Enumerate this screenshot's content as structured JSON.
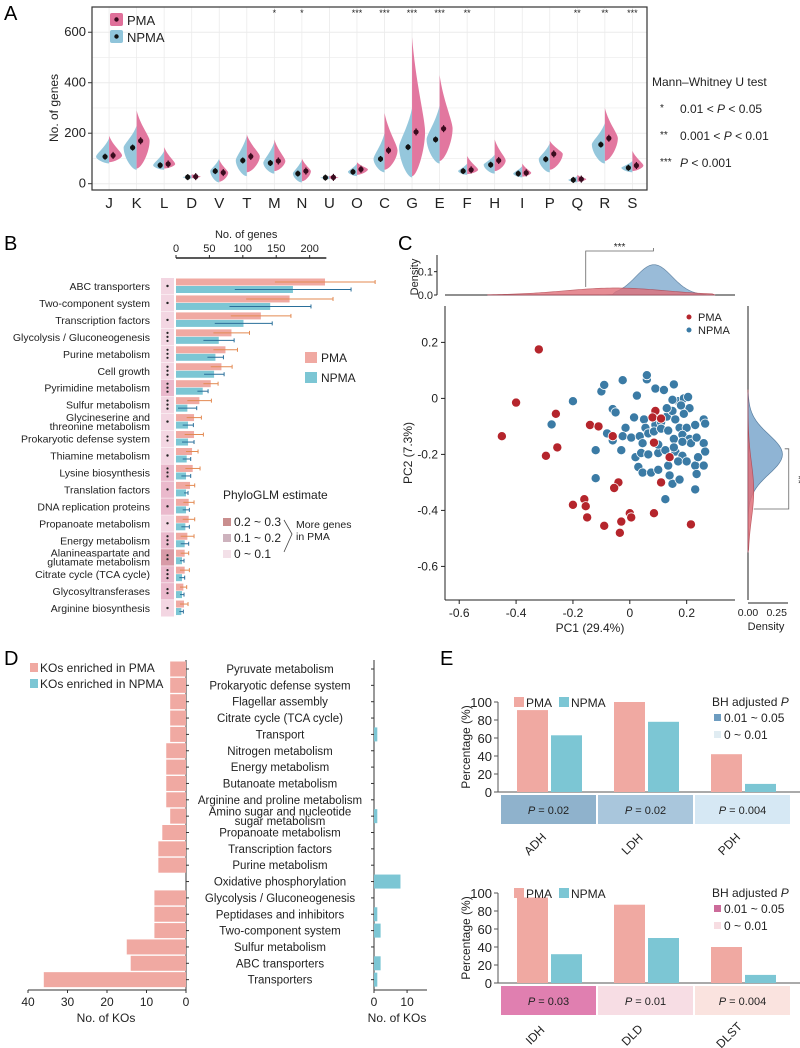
{
  "panel_labels": [
    "A",
    "B",
    "C",
    "D",
    "E"
  ],
  "colors": {
    "pma": "#e0709a",
    "npma": "#8fc4da",
    "pma_bar": "#f0a9a2",
    "npma_bar": "#7cc6d4",
    "pma_point": "#b5252c",
    "npma_point": "#3b7ba5",
    "pma_density": "#e0707a",
    "npma_density": "#8fb4d4"
  },
  "chart_data": [
    {
      "id": "A",
      "type": "violin",
      "ylabel": "No. of genes",
      "yticks": [
        0,
        200,
        400,
        600
      ],
      "ylim": [
        -25,
        700
      ],
      "legend": [
        "PMA",
        "NPMA"
      ],
      "categories": [
        "J",
        "K",
        "L",
        "D",
        "V",
        "T",
        "M",
        "N",
        "U",
        "O",
        "C",
        "G",
        "E",
        "F",
        "H",
        "I",
        "P",
        "Q",
        "R",
        "S"
      ],
      "series": [
        {
          "name": "NPMA",
          "means": [
            107,
            143,
            73,
            26,
            50,
            92,
            82,
            40,
            24,
            47,
            98,
            145,
            175,
            50,
            75,
            40,
            97,
            15,
            155,
            63
          ],
          "min": [
            80,
            55,
            55,
            20,
            5,
            30,
            40,
            5,
            18,
            30,
            45,
            25,
            80,
            35,
            40,
            25,
            45,
            5,
            80,
            45
          ],
          "max": [
            180,
            230,
            130,
            35,
            100,
            190,
            165,
            95,
            30,
            80,
            200,
            300,
            310,
            80,
            115,
            70,
            160,
            30,
            240,
            90
          ]
        },
        {
          "name": "PMA",
          "means": [
            112,
            170,
            78,
            28,
            44,
            108,
            90,
            50,
            25,
            57,
            132,
            205,
            218,
            55,
            92,
            43,
            118,
            18,
            180,
            72
          ],
          "min": [
            85,
            60,
            60,
            22,
            8,
            45,
            50,
            10,
            20,
            35,
            55,
            30,
            90,
            38,
            50,
            28,
            55,
            8,
            90,
            50
          ],
          "max": [
            190,
            290,
            145,
            38,
            95,
            195,
            175,
            100,
            32,
            85,
            280,
            580,
            430,
            110,
            175,
            80,
            170,
            35,
            300,
            130
          ]
        }
      ],
      "significance": [
        "",
        "",
        "",
        "",
        "",
        "",
        "*",
        "*",
        "",
        "***",
        "***",
        "***",
        "***",
        "**",
        "",
        "",
        "",
        "**",
        "**",
        "***"
      ],
      "annotation": {
        "title": "Mann–Whitney U test",
        "rows": [
          {
            "stars": "*",
            "pre": "0.01 < ",
            "p": "P",
            "post": " < 0.05"
          },
          {
            "stars": "**",
            "pre": "0.001 < ",
            "p": "P",
            "post": " < 0.01"
          },
          {
            "stars": "***",
            "pre": "",
            "p": "P",
            "post": "  < 0.001"
          }
        ]
      }
    },
    {
      "id": "B",
      "type": "bar",
      "orientation": "horizontal",
      "xlabel": "No. of genes",
      "xticks": [
        0,
        50,
        100,
        150,
        200
      ],
      "xlim": [
        0,
        230
      ],
      "legend": [
        "PMA",
        "NPMA"
      ],
      "categories": [
        "ABC transporters",
        "Two-component system",
        "Transcription factors",
        "Glycolysis / Gluconeogenesis",
        "Purine metabolism",
        "Cell growth",
        "Pyrimidine metabolism",
        "Sulfur metabolism",
        "Glycineserine and\nthreonine metabolism",
        "Prokaryotic defense system",
        "Thiamine metabolism",
        "Lysine biosynthesis",
        "Translation factors",
        "DNA replication proteins",
        "Propanoate metabolism",
        "Energy metabolism",
        "Alanineaspartate and\nglutamate metabolism",
        "Citrate cycle (TCA cycle)",
        "Glycosyltransferases",
        "Arginine biosynthesis"
      ],
      "series": [
        {
          "name": "PMA",
          "values": [
            223,
            170,
            127,
            83,
            74,
            68,
            52,
            35,
            27,
            27,
            24,
            25,
            21,
            19,
            19,
            17,
            13,
            13,
            11,
            12
          ],
          "err": [
            75,
            65,
            45,
            27,
            18,
            16,
            11,
            18,
            11,
            14,
            9,
            11,
            7,
            8,
            9,
            10,
            6,
            7,
            5,
            6
          ]
        },
        {
          "name": "NPMA",
          "values": [
            175,
            141,
            101,
            64,
            59,
            57,
            40,
            17,
            18,
            18,
            16,
            15,
            15,
            15,
            14,
            13,
            9,
            9,
            9,
            8
          ],
          "err": [
            87,
            61,
            43,
            23,
            12,
            15,
            8,
            14,
            8,
            9,
            6,
            7,
            3,
            5,
            6,
            6,
            3,
            4,
            3,
            3
          ]
        }
      ],
      "significance": [
        "*",
        "*",
        "*",
        "***",
        "***",
        "***",
        "***",
        "***",
        "*",
        "**",
        "*",
        "***",
        "*",
        "*",
        "*",
        "***",
        "**",
        "***",
        "**",
        "*"
      ],
      "phyloglm_level": [
        1,
        1,
        1,
        1,
        1,
        1,
        2,
        1,
        1,
        1,
        1,
        2,
        2,
        2,
        1,
        2,
        3,
        2,
        2,
        1
      ],
      "phyloglm_legend": {
        "title": "PhyloGLM estimate",
        "levels": [
          "0.2 ~ 0.3",
          "0.1 ~ 0.2",
          "0 ~ 0.1"
        ],
        "brace_label": "More genes\nin PMA"
      }
    },
    {
      "id": "C",
      "type": "scatter",
      "xlabel": "PC1 (29.4%)",
      "ylabel": "PC2 (7.3%)",
      "xticks": [
        -0.6,
        -0.4,
        -0.2,
        0,
        0.2
      ],
      "yticks": [
        0.2,
        0,
        -0.2,
        -0.4,
        -0.6
      ],
      "xlim": [
        -0.65,
        0.37
      ],
      "ylim": [
        -0.72,
        0.33
      ],
      "legend": [
        "PMA",
        "NPMA"
      ],
      "top_density": {
        "ylabel": "Density",
        "yticks": [
          0.0,
          0.1
        ],
        "significance": "***"
      },
      "right_density": {
        "xlabel": "Density",
        "xticks": [
          0.0,
          0.25
        ],
        "significance": "**"
      },
      "series": [
        {
          "name": "PMA",
          "points": [
            [
              -0.32,
              0.175
            ],
            [
              -0.4,
              -0.015
            ],
            [
              -0.45,
              -0.135
            ],
            [
              -0.26,
              -0.055
            ],
            [
              -0.255,
              -0.175
            ],
            [
              -0.295,
              -0.205
            ],
            [
              -0.14,
              -0.095
            ],
            [
              -0.11,
              -0.1
            ],
            [
              -0.06,
              -0.135
            ],
            [
              0.09,
              -0.045
            ],
            [
              0.08,
              -0.068
            ],
            [
              0.11,
              -0.072
            ],
            [
              0.085,
              -0.158
            ],
            [
              0.14,
              -0.21
            ],
            [
              0.11,
              -0.3
            ],
            [
              -0.04,
              -0.3
            ],
            [
              -0.055,
              -0.32
            ],
            [
              -0.16,
              -0.36
            ],
            [
              -0.155,
              -0.385
            ],
            [
              -0.2,
              -0.38
            ],
            [
              -0.15,
              -0.425
            ],
            [
              -0.09,
              -0.455
            ],
            [
              -0.03,
              -0.44
            ],
            [
              0.0,
              -0.41
            ],
            [
              0.005,
              -0.425
            ],
            [
              -0.035,
              -0.48
            ],
            [
              0.085,
              -0.41
            ],
            [
              0.215,
              -0.45
            ]
          ]
        },
        {
          "name": "NPMA",
          "points": [
            [
              -0.2,
              -0.01
            ],
            [
              -0.275,
              -0.093
            ],
            [
              -0.12,
              -0.185
            ],
            [
              -0.12,
              -0.285
            ],
            [
              -0.1,
              0.025
            ],
            [
              -0.09,
              0.048
            ],
            [
              -0.025,
              0.065
            ],
            [
              0.06,
              0.068
            ],
            [
              0.06,
              0.083
            ],
            [
              0.025,
              0.01
            ],
            [
              0.09,
              0.035
            ],
            [
              0.155,
              0.05
            ],
            [
              -0.06,
              -0.038
            ],
            [
              -0.05,
              -0.05
            ],
            [
              -0.015,
              -0.105
            ],
            [
              0.015,
              -0.068
            ],
            [
              0.05,
              -0.075
            ],
            [
              0.055,
              -0.105
            ],
            [
              0.09,
              -0.095
            ],
            [
              0.11,
              -0.085
            ],
            [
              0.13,
              -0.065
            ],
            [
              0.15,
              -0.045
            ],
            [
              0.17,
              -0.01
            ],
            [
              0.19,
              0.0
            ],
            [
              0.205,
              0.005
            ],
            [
              0.21,
              -0.035
            ],
            [
              0.19,
              -0.055
            ],
            [
              0.16,
              -0.075
            ],
            [
              0.175,
              -0.105
            ],
            [
              0.2,
              -0.105
            ],
            [
              0.23,
              -0.095
            ],
            [
              0.26,
              -0.075
            ],
            [
              0.265,
              -0.09
            ],
            [
              -0.08,
              -0.125
            ],
            [
              -0.06,
              -0.15
            ],
            [
              -0.03,
              -0.185
            ],
            [
              -0.025,
              -0.135
            ],
            [
              0.005,
              -0.14
            ],
            [
              0.035,
              -0.135
            ],
            [
              0.065,
              -0.125
            ],
            [
              0.085,
              -0.118
            ],
            [
              0.11,
              -0.108
            ],
            [
              0.135,
              -0.115
            ],
            [
              0.155,
              -0.145
            ],
            [
              0.185,
              -0.13
            ],
            [
              0.21,
              -0.145
            ],
            [
              0.215,
              -0.16
            ],
            [
              0.235,
              -0.14
            ],
            [
              0.26,
              -0.16
            ],
            [
              0.265,
              -0.19
            ],
            [
              0.02,
              -0.21
            ],
            [
              0.04,
              -0.195
            ],
            [
              0.065,
              -0.2
            ],
            [
              0.1,
              -0.195
            ],
            [
              0.125,
              -0.185
            ],
            [
              0.16,
              -0.19
            ],
            [
              0.185,
              -0.205
            ],
            [
              0.03,
              -0.245
            ],
            [
              0.045,
              -0.265
            ],
            [
              0.075,
              -0.265
            ],
            [
              0.1,
              -0.255
            ],
            [
              0.135,
              -0.24
            ],
            [
              0.17,
              -0.225
            ],
            [
              0.2,
              -0.225
            ],
            [
              0.23,
              -0.24
            ],
            [
              0.26,
              -0.24
            ],
            [
              0.15,
              -0.305
            ],
            [
              0.175,
              -0.29
            ],
            [
              0.235,
              -0.27
            ],
            [
              0.23,
              -0.325
            ],
            [
              0.125,
              -0.36
            ],
            [
              0.185,
              -0.155
            ],
            [
              0.155,
              -0.175
            ],
            [
              0.14,
              -0.275
            ],
            [
              0.1,
              -0.165
            ],
            [
              0.045,
              -0.16
            ],
            [
              0.13,
              -0.035
            ],
            [
              0.15,
              -0.005
            ],
            [
              0.18,
              -0.025
            ],
            [
              0.12,
              0.03
            ],
            [
              0.24,
              -0.21
            ]
          ]
        }
      ]
    },
    {
      "id": "D",
      "type": "bar",
      "orientation": "horizontal-diverging",
      "xlabel_left": "No. of KOs",
      "xlabel_right": "No. of KOs",
      "xticks_left": [
        40,
        30,
        20,
        10,
        0
      ],
      "xticks_right": [
        0,
        10
      ],
      "xlim_left": [
        0,
        40
      ],
      "xlim_right": [
        0,
        13
      ],
      "legend": [
        "KOs enriched in PMA",
        "KOs enriched in NPMA"
      ],
      "categories": [
        "Pyruvate metabolism",
        "Prokaryotic defense system",
        "Flagellar assembly",
        "Citrate cycle (TCA cycle)",
        "Transport",
        "Nitrogen metabolism",
        "Energy metabolism",
        "Butanoate metabolism",
        "Arginine and proline metabolism",
        "Amino sugar and nucleotide\nsugar metabolism",
        "Propanoate metabolism",
        "Transcription factors",
        "Purine metabolism",
        "Oxidative phosphorylation",
        "Glycolysis / Gluconeogenesis",
        "Peptidases and inhibitors",
        "Two-component system",
        "Sulfur metabolism",
        "ABC transporters",
        "Transporters"
      ],
      "series": [
        {
          "name": "KOs enriched in PMA",
          "values": [
            4,
            4,
            4,
            4,
            4,
            5,
            5,
            5,
            5,
            4,
            6,
            7,
            7,
            0,
            8,
            8,
            8,
            15,
            14,
            36
          ]
        },
        {
          "name": "KOs enriched in NPMA",
          "values": [
            0,
            0,
            0,
            0,
            1,
            0,
            0,
            0,
            0,
            1,
            0,
            0,
            0,
            8,
            0,
            1,
            2,
            0,
            2,
            1
          ]
        }
      ]
    },
    {
      "id": "E1",
      "type": "bar",
      "ylabel": "Percentage (%)",
      "yticks": [
        0,
        20,
        40,
        60,
        80,
        100
      ],
      "ylim": [
        0,
        100
      ],
      "legend": [
        "PMA",
        "NPMA"
      ],
      "categories": [
        "ADH",
        "LDH",
        "PDH"
      ],
      "series": [
        {
          "name": "PMA",
          "values": [
            91,
            100,
            42
          ]
        },
        {
          "name": "NPMA",
          "values": [
            63,
            78,
            9
          ]
        }
      ],
      "p_values": [
        "0.02",
        "0.02",
        "0.004"
      ],
      "p_colors": [
        "#8fb2cc",
        "#a9c6dc",
        "#d6e8f4"
      ],
      "p_legend": {
        "title": "BH adjusted ",
        "title_italic": "P",
        "levels": [
          "0.01 ~ 0.05",
          "0 ~ 0.01"
        ],
        "colors": [
          "#6d9cc0",
          "#e0ecf2"
        ]
      }
    },
    {
      "id": "E2",
      "type": "bar",
      "ylabel": "Percentage (%)",
      "yticks": [
        0,
        20,
        40,
        60,
        80,
        100
      ],
      "ylim": [
        0,
        100
      ],
      "legend": [
        "PMA",
        "NPMA"
      ],
      "categories": [
        "IDH",
        "DLD",
        "DLST"
      ],
      "series": [
        {
          "name": "PMA",
          "values": [
            95,
            87,
            40
          ]
        },
        {
          "name": "NPMA",
          "values": [
            32,
            50,
            9
          ]
        }
      ],
      "p_values": [
        "0.03",
        "0.01",
        "0.004"
      ],
      "p_colors": [
        "#e07fb0",
        "#f7dde4",
        "#fae3df"
      ],
      "p_legend": {
        "title": "BH adjusted ",
        "title_italic": "P",
        "levels": [
          "0.01 ~ 0.05",
          "0 ~ 0.01"
        ],
        "colors": [
          "#cc6b9a",
          "#f7dde2"
        ]
      }
    }
  ]
}
